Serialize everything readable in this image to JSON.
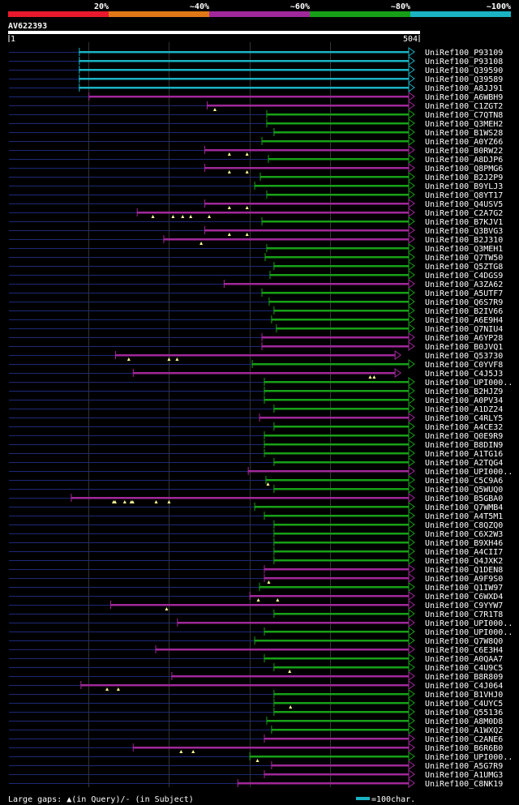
{
  "query_id": "AV622393",
  "query_start": "1",
  "query_end": "504",
  "query_length": 504,
  "identity_legend": {
    "labels": [
      "20%",
      "~40%",
      "~60%",
      "~80%",
      "~100%"
    ],
    "colors": [
      "#e8192c",
      "#e07818",
      "#a0289a",
      "#17a017",
      "#1ab3c4"
    ]
  },
  "footer": {
    "gaps_label": "Large gaps: ▲(in Query)/- (in Subject)",
    "scale_label": "=100char."
  },
  "chart_data": {
    "type": "alignment-overview",
    "x_range": [
      1,
      504
    ],
    "rows": [
      {
        "name": "UniRef100_P93109",
        "s": 88,
        "e": 504,
        "c": 4,
        "q": []
      },
      {
        "name": "UniRef100_P93108",
        "s": 88,
        "e": 504,
        "c": 4,
        "q": []
      },
      {
        "name": "UniRef100_Q39590",
        "s": 88,
        "e": 504,
        "c": 4,
        "q": []
      },
      {
        "name": "UniRef100_Q39589",
        "s": 88,
        "e": 504,
        "c": 4,
        "q": []
      },
      {
        "name": "UniRef100_A8JJ91",
        "s": 88,
        "e": 504,
        "c": 4,
        "q": []
      },
      {
        "name": "UniRef100_A6WBH9",
        "s": 100,
        "e": 504,
        "c": 2,
        "q": []
      },
      {
        "name": "UniRef100_C1ZGT2",
        "s": 247,
        "e": 504,
        "c": 2,
        "q": [
          257
        ]
      },
      {
        "name": "UniRef100_C7QTN8",
        "s": 321,
        "e": 504,
        "c": 3,
        "q": []
      },
      {
        "name": "UniRef100_Q3MEH2",
        "s": 321,
        "e": 504,
        "c": 3,
        "q": []
      },
      {
        "name": "UniRef100_B1WS28",
        "s": 330,
        "e": 504,
        "c": 3,
        "q": []
      },
      {
        "name": "UniRef100_A0YZ66",
        "s": 315,
        "e": 504,
        "c": 3,
        "q": []
      },
      {
        "name": "UniRef100_B0RW22",
        "s": 244,
        "e": 504,
        "c": 2,
        "q": [
          275,
          297
        ]
      },
      {
        "name": "UniRef100_A8DJP6",
        "s": 323,
        "e": 504,
        "c": 3,
        "q": []
      },
      {
        "name": "UniRef100_Q8PMG6",
        "s": 244,
        "e": 504,
        "c": 2,
        "q": [
          275,
          297
        ]
      },
      {
        "name": "UniRef100_B2J2P9",
        "s": 313,
        "e": 504,
        "c": 3,
        "q": []
      },
      {
        "name": "UniRef100_B9YLJ3",
        "s": 306,
        "e": 504,
        "c": 3,
        "q": []
      },
      {
        "name": "UniRef100_Q8YT17",
        "s": 321,
        "e": 504,
        "c": 3,
        "q": []
      },
      {
        "name": "UniRef100_Q4USV5",
        "s": 244,
        "e": 504,
        "c": 2,
        "q": [
          275,
          297
        ]
      },
      {
        "name": "UniRef100_C2A7G2",
        "s": 160,
        "e": 504,
        "c": 2,
        "q": [
          180,
          205,
          217,
          227,
          250
        ]
      },
      {
        "name": "UniRef100_B7KJV1",
        "s": 315,
        "e": 504,
        "c": 3,
        "q": []
      },
      {
        "name": "UniRef100_Q3BVG3",
        "s": 244,
        "e": 504,
        "c": 2,
        "q": [
          275,
          297
        ]
      },
      {
        "name": "UniRef100_B2J310",
        "s": 193,
        "e": 504,
        "c": 2,
        "q": [
          240
        ]
      },
      {
        "name": "UniRef100_Q3MEH1",
        "s": 321,
        "e": 504,
        "c": 3,
        "q": []
      },
      {
        "name": "UniRef100_Q7TW50",
        "s": 319,
        "e": 504,
        "c": 3,
        "q": []
      },
      {
        "name": "UniRef100_Q5ZTG8",
        "s": 330,
        "e": 504,
        "c": 3,
        "q": []
      },
      {
        "name": "UniRef100_C4DGS9",
        "s": 325,
        "e": 504,
        "c": 3,
        "q": []
      },
      {
        "name": "UniRef100_A3ZA62",
        "s": 268,
        "e": 504,
        "c": 2,
        "q": []
      },
      {
        "name": "UniRef100_A5UTF7",
        "s": 315,
        "e": 504,
        "c": 3,
        "q": []
      },
      {
        "name": "UniRef100_Q6S7R9",
        "s": 324,
        "e": 504,
        "c": 3,
        "q": []
      },
      {
        "name": "UniRef100_B2IV66",
        "s": 330,
        "e": 504,
        "c": 3,
        "q": []
      },
      {
        "name": "UniRef100_A6E9H4",
        "s": 327,
        "e": 504,
        "c": 3,
        "q": []
      },
      {
        "name": "UniRef100_Q7NIU4",
        "s": 333,
        "e": 504,
        "c": 3,
        "q": []
      },
      {
        "name": "UniRef100_A6YP28",
        "s": 315,
        "e": 504,
        "c": 2,
        "q": []
      },
      {
        "name": "UniRef100_B0JVQ1",
        "s": 315,
        "e": 504,
        "c": 2,
        "q": []
      },
      {
        "name": "UniRef100_Q53730",
        "s": 133,
        "e": 487,
        "c": 2,
        "q": [
          150,
          200,
          210
        ]
      },
      {
        "name": "UniRef100_C0YVF8",
        "s": 303,
        "e": 504,
        "c": 3,
        "q": []
      },
      {
        "name": "UniRef100_C4J5J3",
        "s": 155,
        "e": 487,
        "c": 2,
        "q": [
          450,
          455
        ]
      },
      {
        "name": "UniRef100_UPI000..",
        "s": 318,
        "e": 504,
        "c": 3,
        "q": []
      },
      {
        "name": "UniRef100_B2HJZ9",
        "s": 318,
        "e": 504,
        "c": 3,
        "q": []
      },
      {
        "name": "UniRef100_A0PV34",
        "s": 318,
        "e": 504,
        "c": 3,
        "q": []
      },
      {
        "name": "UniRef100_A1DZ24",
        "s": 330,
        "e": 504,
        "c": 3,
        "q": []
      },
      {
        "name": "UniRef100_C4RLY5",
        "s": 312,
        "e": 504,
        "c": 2,
        "q": []
      },
      {
        "name": "UniRef100_A4CE32",
        "s": 330,
        "e": 504,
        "c": 3,
        "q": []
      },
      {
        "name": "UniRef100_Q0E9R9",
        "s": 318,
        "e": 504,
        "c": 3,
        "q": []
      },
      {
        "name": "UniRef100_B8DIN9",
        "s": 318,
        "e": 504,
        "c": 3,
        "q": []
      },
      {
        "name": "UniRef100_A1TG16",
        "s": 318,
        "e": 504,
        "c": 3,
        "q": []
      },
      {
        "name": "UniRef100_A2TQG4",
        "s": 330,
        "e": 504,
        "c": 3,
        "q": []
      },
      {
        "name": "UniRef100_UPI000..",
        "s": 298,
        "e": 504,
        "c": 2,
        "q": []
      },
      {
        "name": "UniRef100_C5C9A6",
        "s": 320,
        "e": 504,
        "c": 3,
        "q": [
          323
        ]
      },
      {
        "name": "UniRef100_Q5WUQ0",
        "s": 330,
        "e": 504,
        "c": 3,
        "q": []
      },
      {
        "name": "UniRef100_B5GBA0",
        "s": 78,
        "e": 504,
        "c": 2,
        "q": [
          131,
          133,
          145,
          153,
          155,
          184,
          200
        ]
      },
      {
        "name": "UniRef100_Q7WMB4",
        "s": 306,
        "e": 504,
        "c": 3,
        "q": []
      },
      {
        "name": "UniRef100_A4T5M1",
        "s": 318,
        "e": 504,
        "c": 3,
        "q": []
      },
      {
        "name": "UniRef100_C8QZQ0",
        "s": 330,
        "e": 504,
        "c": 3,
        "q": []
      },
      {
        "name": "UniRef100_C6X2W3",
        "s": 330,
        "e": 504,
        "c": 3,
        "q": []
      },
      {
        "name": "UniRef100_B9XH46",
        "s": 330,
        "e": 504,
        "c": 3,
        "q": []
      },
      {
        "name": "UniRef100_A4CII7",
        "s": 330,
        "e": 504,
        "c": 3,
        "q": []
      },
      {
        "name": "UniRef100_Q4JXK2",
        "s": 330,
        "e": 504,
        "c": 3,
        "q": []
      },
      {
        "name": "UniRef100_Q1DEN8",
        "s": 318,
        "e": 504,
        "c": 2,
        "q": []
      },
      {
        "name": "UniRef100_A9F9S0",
        "s": 318,
        "e": 504,
        "c": 2,
        "q": [
          324
        ]
      },
      {
        "name": "UniRef100_Q1IW97",
        "s": 312,
        "e": 504,
        "c": 3,
        "q": []
      },
      {
        "name": "UniRef100_C6WXD4",
        "s": 300,
        "e": 504,
        "c": 2,
        "q": [
          311,
          335
        ]
      },
      {
        "name": "UniRef100_C9YYW7",
        "s": 127,
        "e": 504,
        "c": 2,
        "q": [
          197
        ]
      },
      {
        "name": "UniRef100_C7R1T8",
        "s": 330,
        "e": 504,
        "c": 3,
        "q": []
      },
      {
        "name": "UniRef100_UPI000..",
        "s": 210,
        "e": 504,
        "c": 2,
        "q": []
      },
      {
        "name": "UniRef100_UPI000..",
        "s": 318,
        "e": 504,
        "c": 3,
        "q": []
      },
      {
        "name": "UniRef100_Q7W8Q0",
        "s": 306,
        "e": 504,
        "c": 3,
        "q": []
      },
      {
        "name": "UniRef100_C6E3H4",
        "s": 183,
        "e": 504,
        "c": 2,
        "q": []
      },
      {
        "name": "UniRef100_A0QAA7",
        "s": 318,
        "e": 504,
        "c": 3,
        "q": []
      },
      {
        "name": "UniRef100_C4U9C5",
        "s": 330,
        "e": 504,
        "c": 3,
        "q": [
          350
        ]
      },
      {
        "name": "UniRef100_B8R809",
        "s": 203,
        "e": 504,
        "c": 2,
        "q": []
      },
      {
        "name": "UniRef100_C4J064",
        "s": 90,
        "e": 504,
        "c": 2,
        "q": [
          123,
          137
        ]
      },
      {
        "name": "UniRef100_B1VHJ0",
        "s": 330,
        "e": 504,
        "c": 3,
        "q": []
      },
      {
        "name": "UniRef100_C4UYC5",
        "s": 330,
        "e": 504,
        "c": 3,
        "q": [
          351
        ]
      },
      {
        "name": "UniRef100_Q55136",
        "s": 330,
        "e": 504,
        "c": 3,
        "q": []
      },
      {
        "name": "UniRef100_A8M0D8",
        "s": 321,
        "e": 504,
        "c": 3,
        "q": []
      },
      {
        "name": "UniRef100_A1WXQ2",
        "s": 327,
        "e": 504,
        "c": 3,
        "q": []
      },
      {
        "name": "UniRef100_C2ANE6",
        "s": 318,
        "e": 504,
        "c": 2,
        "q": []
      },
      {
        "name": "UniRef100_B6R6B0",
        "s": 155,
        "e": 504,
        "c": 2,
        "q": [
          215,
          230
        ]
      },
      {
        "name": "UniRef100_UPI000..",
        "s": 300,
        "e": 504,
        "c": 3,
        "q": [
          310
        ]
      },
      {
        "name": "UniRef100_A5G7R9",
        "s": 327,
        "e": 504,
        "c": 2,
        "q": []
      },
      {
        "name": "UniRef100_A1UMG3",
        "s": 318,
        "e": 504,
        "c": 2,
        "q": []
      },
      {
        "name": "UniRef100_C8NK19",
        "s": 285,
        "e": 504,
        "c": 2,
        "q": []
      }
    ]
  }
}
